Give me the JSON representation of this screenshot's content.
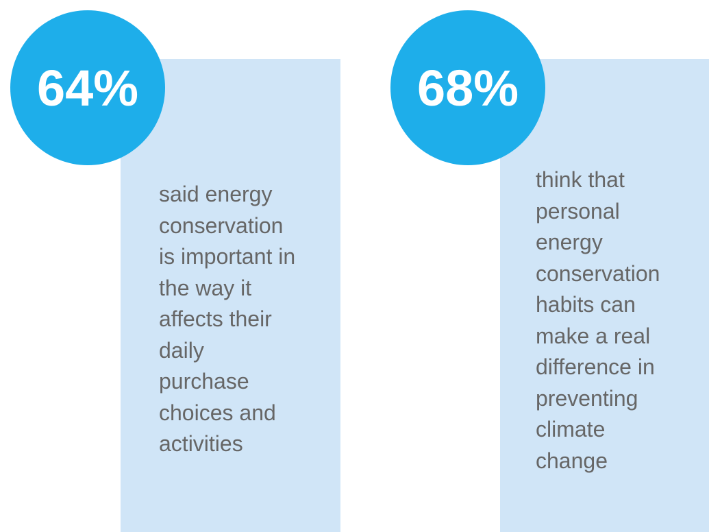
{
  "cards": [
    {
      "stat": "64%",
      "lines": [
        "said energy",
        "conservation",
        "is important in",
        "the way it",
        "affects their",
        "daily",
        "purchase",
        "choices and",
        "activities"
      ]
    },
    {
      "stat": "68%",
      "lines": [
        "think that",
        "personal",
        "energy",
        "conservation",
        "habits can",
        "make a real",
        "difference in",
        "preventing",
        "climate",
        "change"
      ]
    }
  ]
}
